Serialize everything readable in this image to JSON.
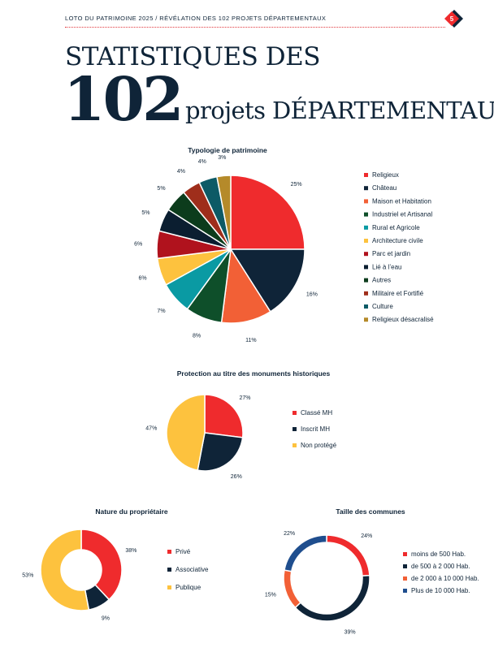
{
  "header": {
    "running_title": "LOTO DU PATRIMOINE 2025 / RÉVÉLATION DES 102 PROJETS DÉPARTEMENTAUX",
    "page_number": "5"
  },
  "title": {
    "line1": "STATISTIQUES DES",
    "number": "102",
    "line2": "projets DÉPARTEMENTAUX"
  },
  "colors": {
    "red": "#ef2b2d",
    "navy": "#0f2438",
    "orange": "#f26036",
    "green": "#0e4f2a",
    "teal": "#0a9aa3",
    "yellow": "#fdc23e",
    "crimson": "#b0121d",
    "dark": "#0b1e30",
    "darkgreen": "#0c3c1c",
    "rust": "#9f2e1b",
    "darkteal": "#0d5a66",
    "gold": "#b58a2a",
    "blue": "#1f4e8e"
  },
  "chart_data": [
    {
      "type": "pie",
      "title": "Typologie de patrimoine",
      "categories": [
        "Religieux",
        "Château",
        "Maison et Habitation",
        "Industriel et Artisanal",
        "Rural et Agricole",
        "Architecture civile",
        "Parc et jardin",
        "Lié à l’eau",
        "Autres",
        "Militaire et Fortifié",
        "Culture",
        "Religieux désacralisé"
      ],
      "values": [
        25,
        16,
        11,
        8,
        7,
        6,
        6,
        5,
        5,
        4,
        4,
        3
      ],
      "labels": [
        "25%",
        "16%",
        "11%",
        "8%",
        "7%",
        "6%",
        "6%",
        "5%",
        "5%",
        "4%",
        "4%",
        "3%"
      ],
      "colors": [
        "#ef2b2d",
        "#0f2438",
        "#f26036",
        "#0e4f2a",
        "#0a9aa3",
        "#fdc23e",
        "#b0121d",
        "#0b1e30",
        "#0c3c1c",
        "#9f2e1b",
        "#0d5a66",
        "#b58a2a"
      ],
      "legend": "right"
    },
    {
      "type": "pie",
      "title": "Protection au titre des monuments historiques",
      "categories": [
        "Classé MH",
        "Inscrit MH",
        "Non protégé"
      ],
      "values": [
        27,
        26,
        47
      ],
      "labels": [
        "27%",
        "26%",
        "47%"
      ],
      "colors": [
        "#ef2b2d",
        "#0f2438",
        "#fdc23e"
      ],
      "legend": "right"
    },
    {
      "type": "pie",
      "title": "Nature du propriétaire",
      "categories": [
        "Privé",
        "Associative",
        "Publique"
      ],
      "values": [
        38,
        9,
        53
      ],
      "labels": [
        "38%",
        "9%",
        "53%"
      ],
      "colors": [
        "#ef2b2d",
        "#0f2438",
        "#fdc23e"
      ],
      "donut": true,
      "legend": "right"
    },
    {
      "type": "pie",
      "title": "Taille des communes",
      "categories": [
        "moins de 500 Hab.",
        "de 500 à 2 000 Hab.",
        "de 2 000 à 10 000 Hab.",
        "Plus de 10 000 Hab."
      ],
      "values": [
        24,
        39,
        15,
        22
      ],
      "labels": [
        "24%",
        "39%",
        "15%",
        "22%"
      ],
      "colors": [
        "#ef2b2d",
        "#0f2438",
        "#f26036",
        "#1f4e8e"
      ],
      "donut": true,
      "legend": "right"
    }
  ]
}
